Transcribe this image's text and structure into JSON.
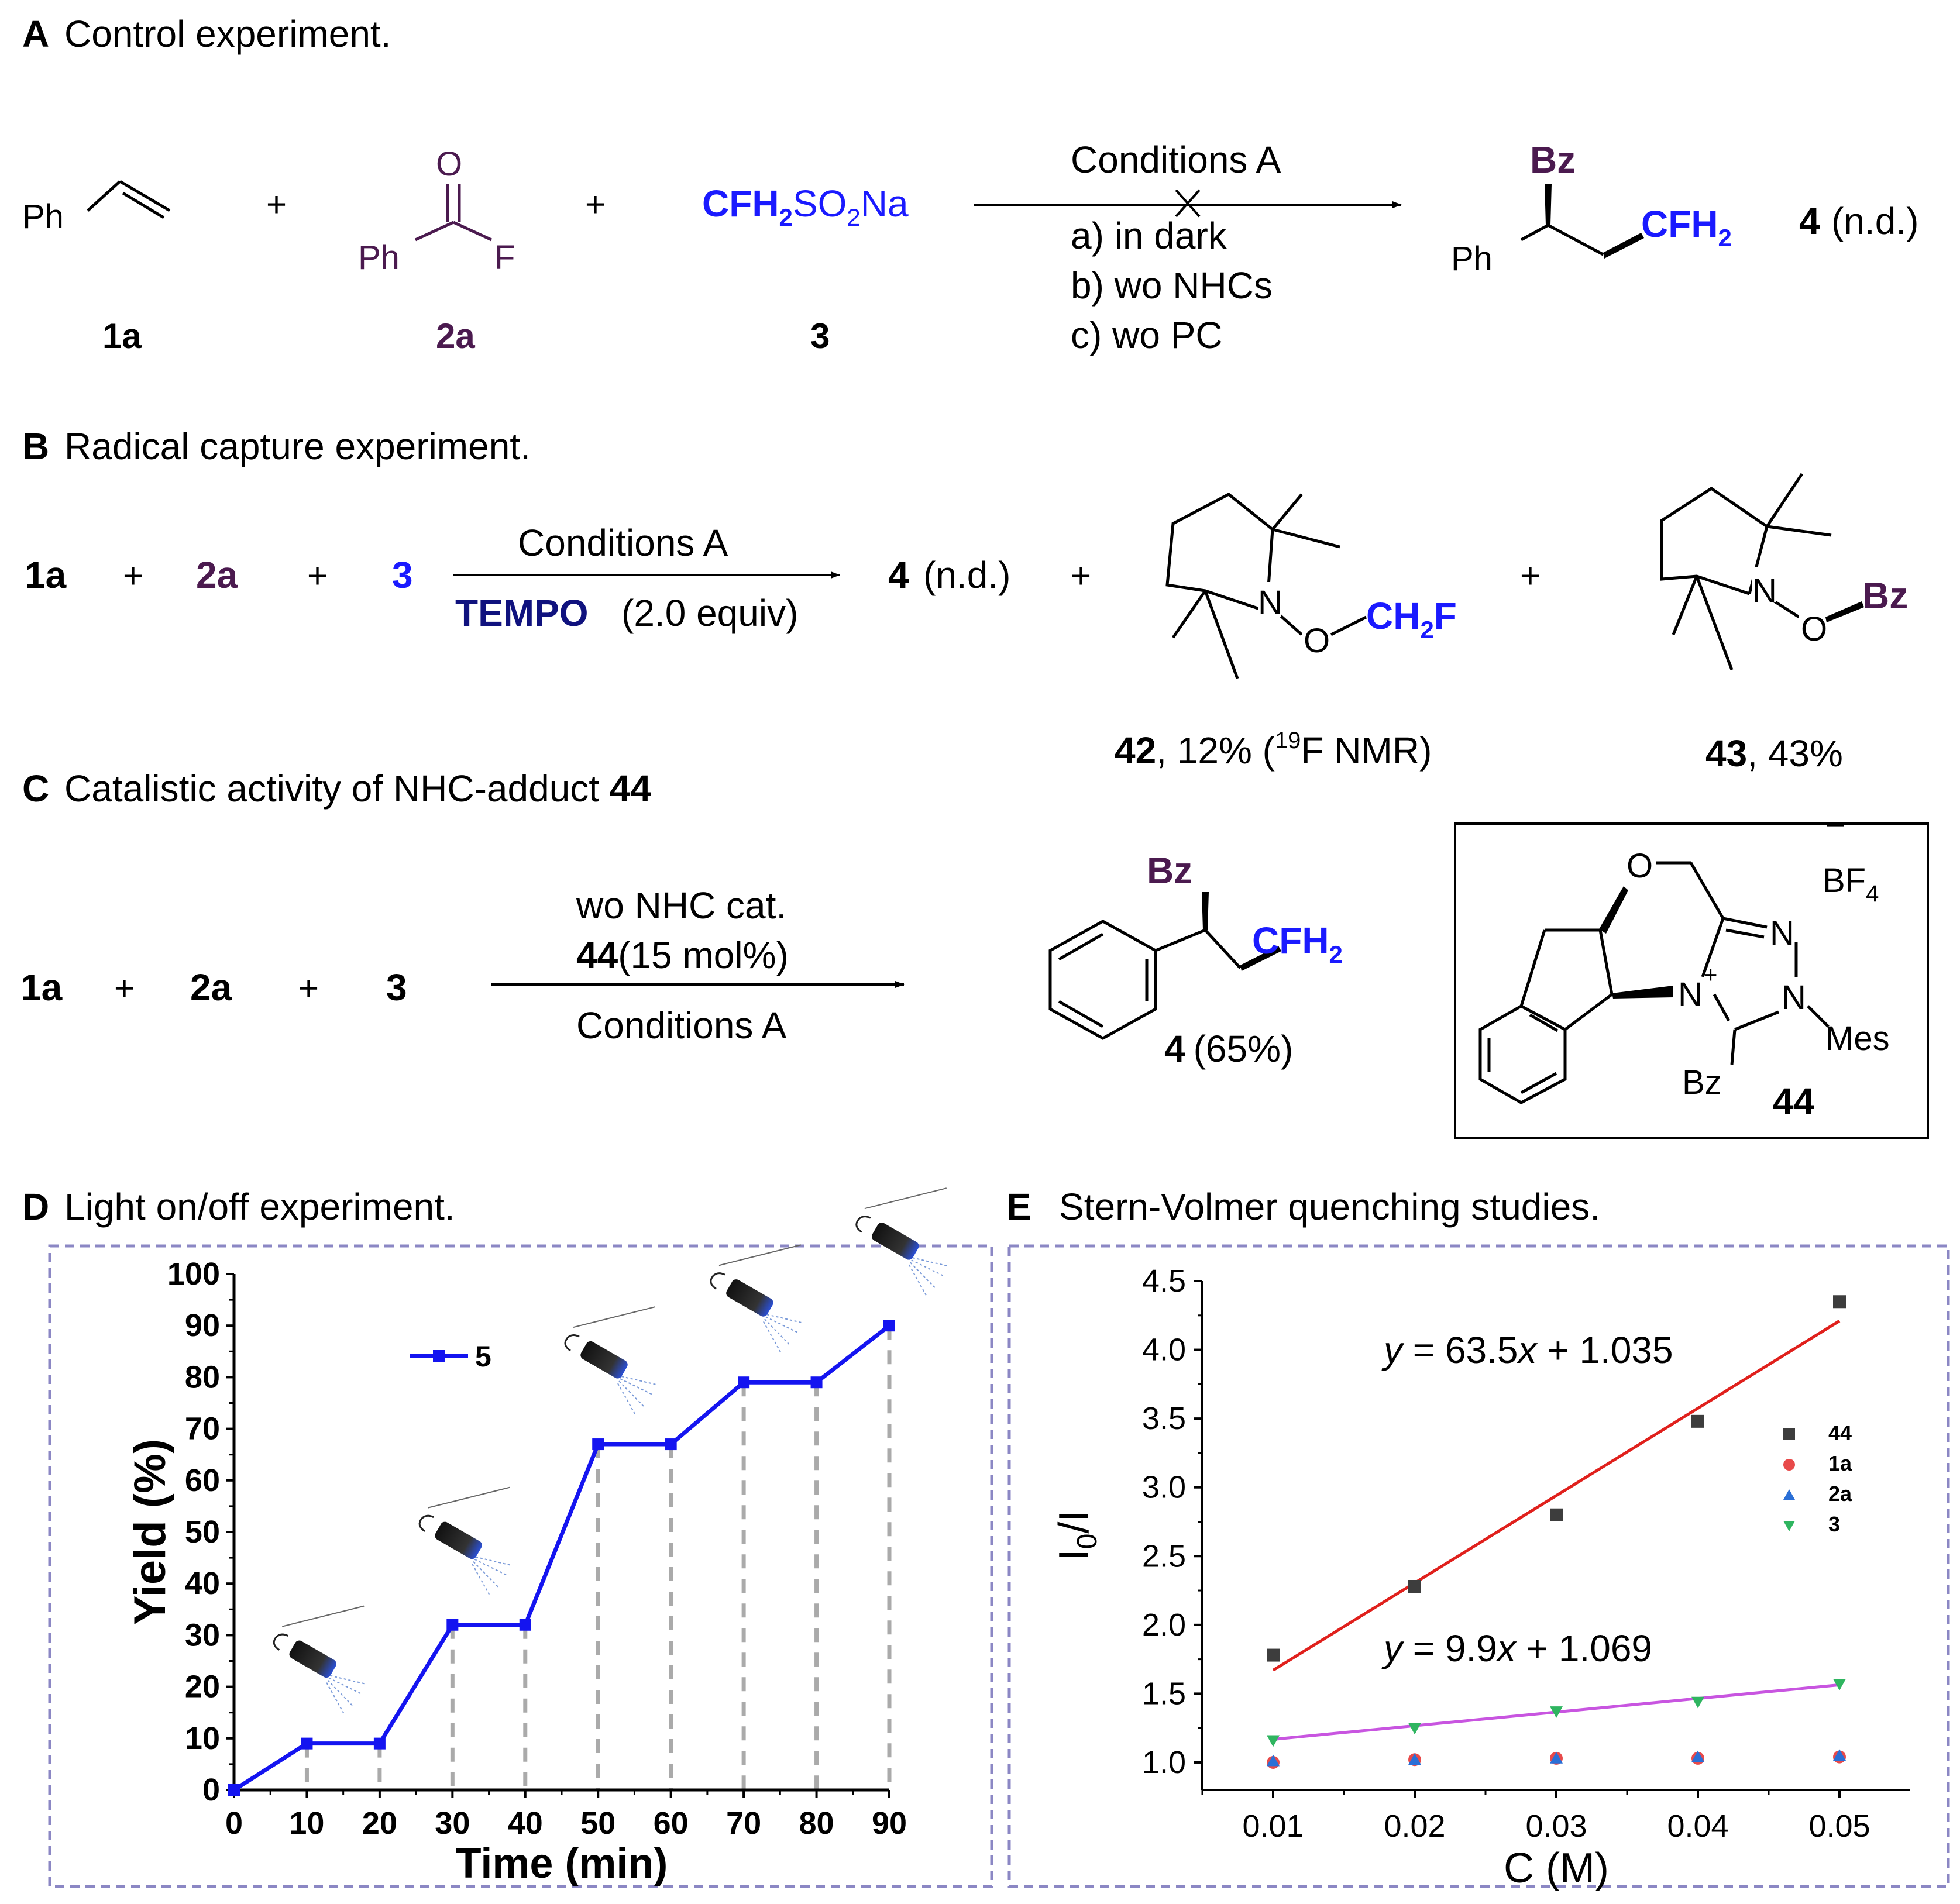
{
  "colors": {
    "purple": "#4b1a4f",
    "blue": "#1a1aff",
    "navy": "#10127e",
    "dash": "#8b87c4",
    "line_blue": "#1414f0",
    "fit_red": "#e0201c",
    "fit_magenta": "#c855e0",
    "s44": "#3d3d3d",
    "s1a": "#e84a4a",
    "s2a": "#2a6fd6",
    "s3": "#2fb560"
  },
  "sectionA": {
    "letter": "A",
    "title": "Control experiment.",
    "ph": "Ph",
    "plus": "+",
    "o": "O",
    "ph2": "Ph",
    "f": "F",
    "reagent_main": "CFH",
    "reagent_sub": "2",
    "reagent_tail": "SO",
    "reagent_sub2": "2",
    "reagent_end": "Na",
    "label_1a": "1a",
    "label_2a": "2a",
    "label_3": "3",
    "conditions": "Conditions A",
    "cond_a": "a) in dark",
    "cond_b": "b) wo NHCs",
    "cond_c": "c) wo PC",
    "bz": "Bz",
    "prod_ph": "Ph",
    "cfh2": "CFH",
    "cfh2_sub": "2",
    "prod_label": "4",
    "prod_note": "(n.d.)"
  },
  "sectionB": {
    "letter": "B",
    "title": "Radical capture experiment.",
    "r1": "1a",
    "r2": "2a",
    "r3": "3",
    "plus": "+",
    "conditions": "Conditions A",
    "tempo": "TEMPO",
    "tempo_eq": "(2.0 equiv)",
    "p4": "4",
    "p4_note": "(n.d.)",
    "n": "N",
    "o": "O",
    "ch2f_a": "CH",
    "ch2f_sub": "2",
    "ch2f_b": "F",
    "bz": "Bz",
    "c42": "42",
    "c42_yield": ", 12% (",
    "c42_sup": "19",
    "c42_end": "F NMR)",
    "c43": "43",
    "c43_yield": ", 43%"
  },
  "sectionC": {
    "letter": "C",
    "title": "Catalistic activity of NHC-adduct ",
    "title_bold": "44",
    "r1": "1a",
    "r2": "2a",
    "r3": "3",
    "plus": "+",
    "wo": "wo NHC cat.",
    "cat_bold": "44",
    "cat_amt": "(15 mol%)",
    "conditions": "Conditions A",
    "bz": "Bz",
    "cfh2": "CFH",
    "cfh2_sub": "2",
    "p4": "4",
    "p4_yield": "(65%)",
    "box_o": "O",
    "box_bf4_minus": "−",
    "box_bf4": "BF",
    "box_bf4_sub": "4",
    "box_n1": "N",
    "box_n2": "N",
    "box_nplus": "N",
    "box_plus": "+",
    "box_mes": "Mes",
    "box_bz": "Bz",
    "box_label": "44"
  },
  "sectionD": {
    "letter": "D",
    "title": "Light on/off experiment."
  },
  "sectionE": {
    "letter": "E",
    "title": "Stern-Volmer quenching studies."
  },
  "chart_data": [
    {
      "type": "line",
      "title": "Light on/off experiment.",
      "xlabel": "Time (min)",
      "ylabel": "Yield (%)",
      "xlim": [
        0,
        90
      ],
      "ylim": [
        0,
        100
      ],
      "xticks": [
        0,
        10,
        20,
        30,
        40,
        50,
        60,
        70,
        80,
        90
      ],
      "yticks": [
        0,
        10,
        20,
        30,
        40,
        50,
        60,
        70,
        80,
        90,
        100
      ],
      "legend": "5",
      "legend_position": "top-left",
      "series": [
        {
          "name": "5",
          "x": [
            0,
            10,
            20,
            30,
            40,
            50,
            60,
            70,
            80,
            90
          ],
          "y": [
            0,
            9,
            9,
            32,
            32,
            67,
            67,
            79,
            79,
            90
          ]
        }
      ],
      "light_on_intervals": [
        [
          0,
          10
        ],
        [
          20,
          30
        ],
        [
          40,
          50
        ],
        [
          60,
          70
        ],
        [
          80,
          90
        ]
      ]
    },
    {
      "type": "scatter",
      "title": "Stern-Volmer quenching studies.",
      "xlabel": "C (M)",
      "ylabel_main": "I",
      "ylabel_sub": "0",
      "ylabel_tail": "/I",
      "xlim": [
        0.005,
        0.055
      ],
      "ylim": [
        0.8,
        4.5
      ],
      "xticks": [
        "0.01",
        "0.02",
        "0.03",
        "0.04",
        "0.05"
      ],
      "yticks": [
        "1.0",
        "1.5",
        "2.0",
        "2.5",
        "3.0",
        "3.5",
        "4.0",
        "4.5"
      ],
      "legend_position": "right",
      "series": [
        {
          "name": "44",
          "marker": "square",
          "x": [
            0.01,
            0.02,
            0.03,
            0.04,
            0.05
          ],
          "y": [
            1.78,
            2.28,
            2.8,
            3.48,
            4.35
          ]
        },
        {
          "name": "1a",
          "marker": "circle",
          "x": [
            0.01,
            0.02,
            0.03,
            0.04,
            0.05
          ],
          "y": [
            1.0,
            1.02,
            1.03,
            1.03,
            1.04
          ]
        },
        {
          "name": "2a",
          "marker": "triangle-up",
          "x": [
            0.01,
            0.02,
            0.03,
            0.04,
            0.05
          ],
          "y": [
            1.01,
            1.02,
            1.03,
            1.04,
            1.05
          ]
        },
        {
          "name": "3",
          "marker": "triangle-down",
          "x": [
            0.01,
            0.02,
            0.03,
            0.04,
            0.05
          ],
          "y": [
            1.16,
            1.25,
            1.37,
            1.44,
            1.57
          ]
        }
      ],
      "fits": [
        {
          "slope": 63.5,
          "intercept": 1.035,
          "x_range": [
            0.01,
            0.05
          ],
          "label_y": "y",
          "label_mid": " = 63.5",
          "label_x": "x",
          "label_end": " + 1.035"
        },
        {
          "slope": 9.9,
          "intercept": 1.069,
          "x_range": [
            0.01,
            0.05
          ],
          "label_y": "y",
          "label_mid": " = 9.9",
          "label_x": "x",
          "label_end": " + 1.069"
        }
      ]
    }
  ]
}
